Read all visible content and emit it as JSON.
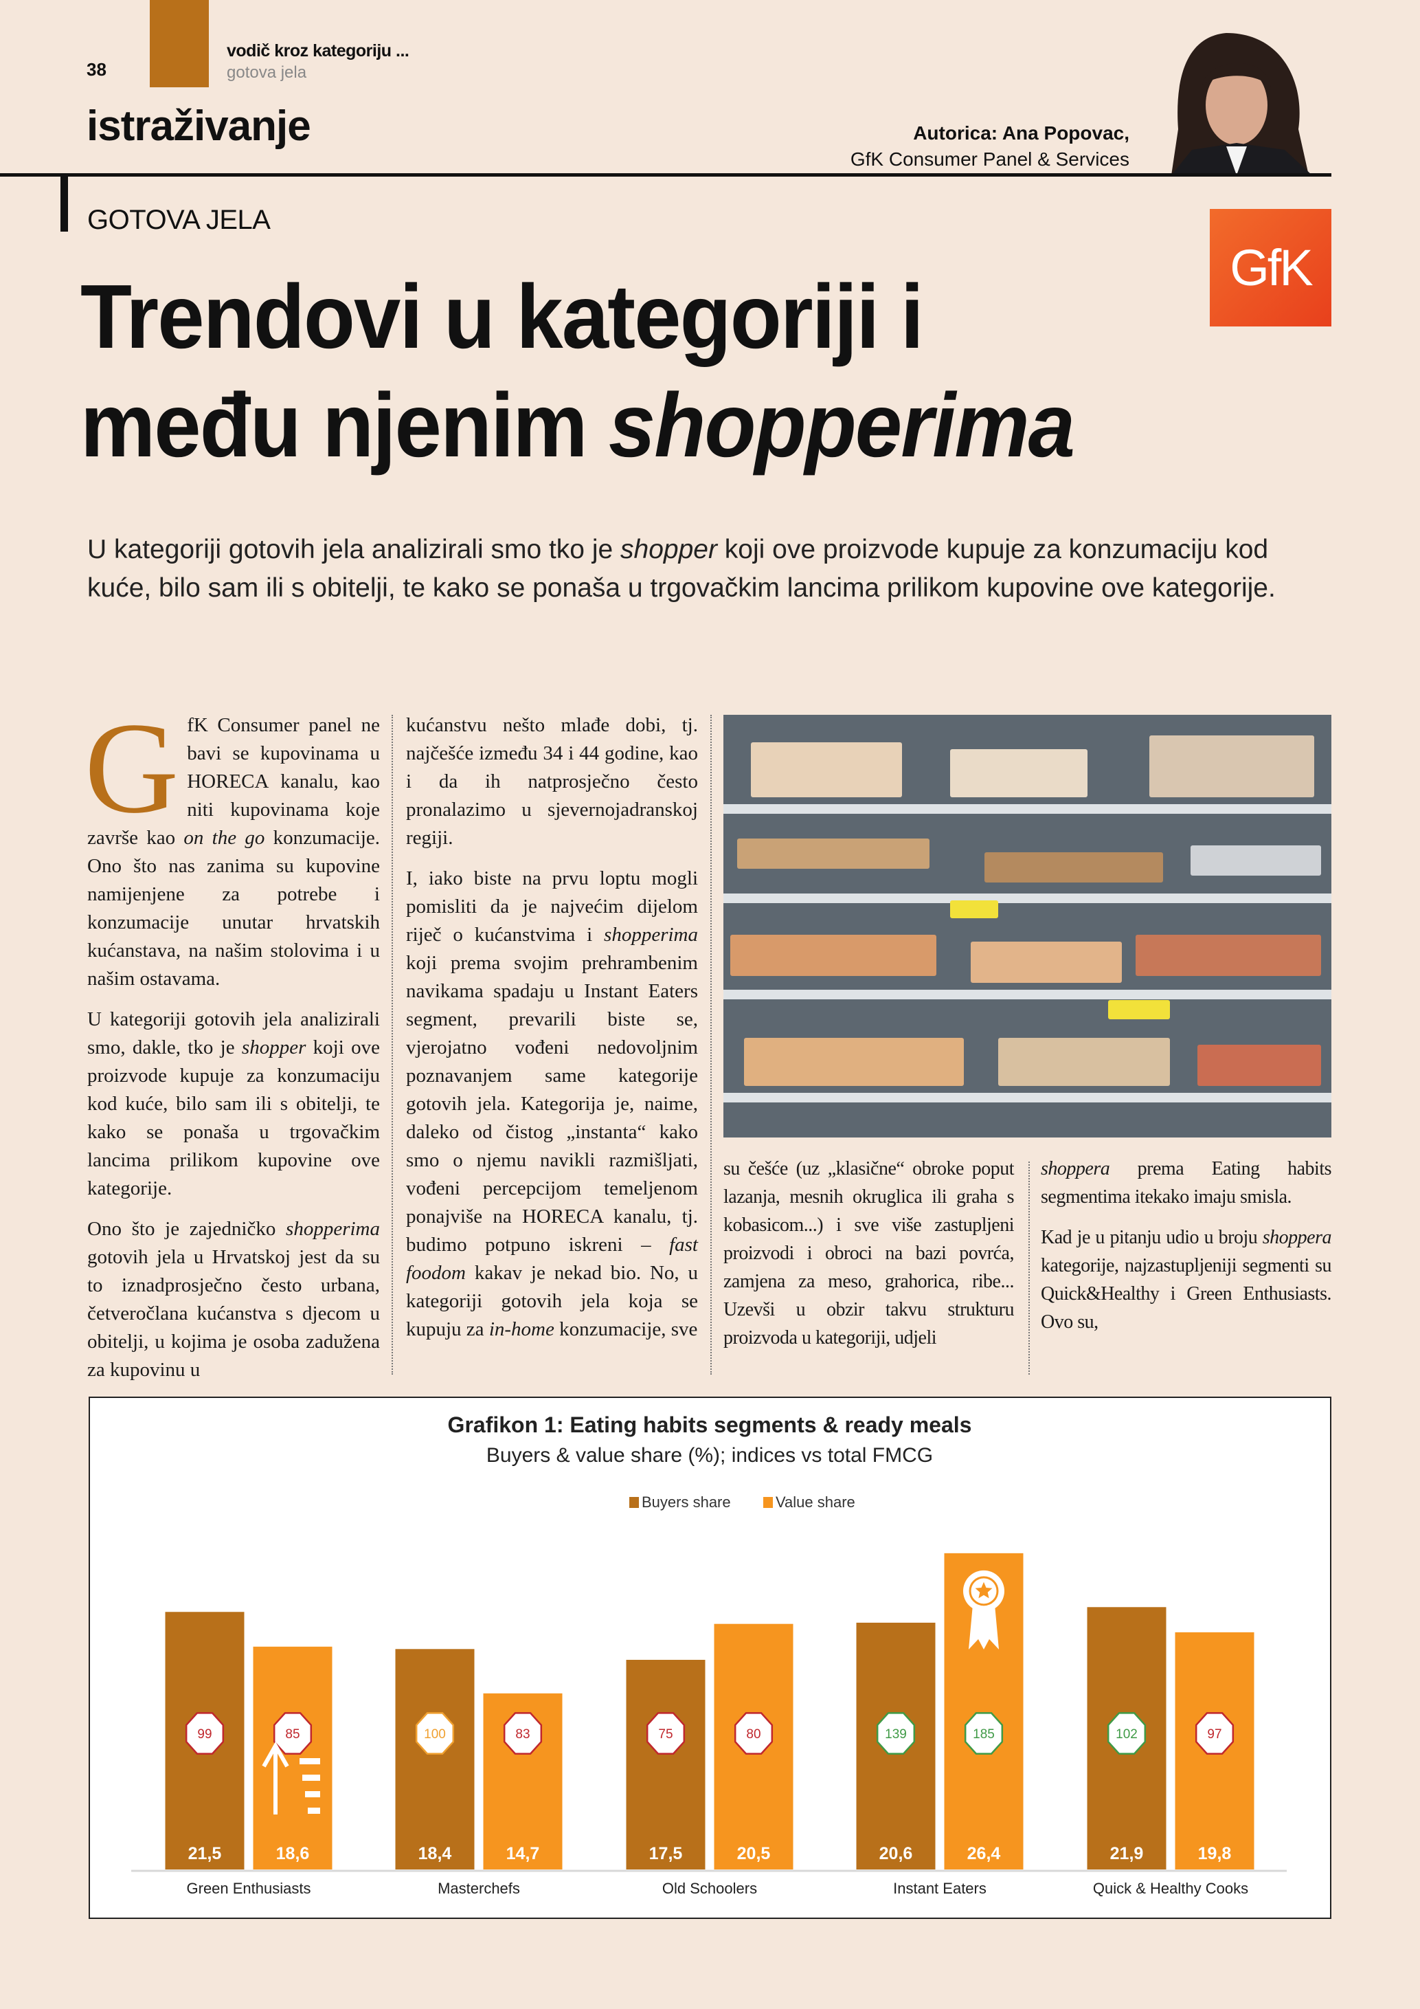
{
  "header": {
    "page_number": "38",
    "kicker": "vodič kroz kategoriju ...",
    "kicker_sub": "gotova jela",
    "section": "istraživanje",
    "author_line": "Autorica: Ana Popovac,",
    "author_org": "GfK Consumer Panel & Services"
  },
  "article": {
    "category": "GOTOVA JELA",
    "logo_text": "GfK",
    "title_line1": "Trendovi u kategoriji i",
    "title_line2_plain": "među njenim ",
    "title_line2_italic": "shopperima",
    "intro_before": "U kategoriji gotovih jela analizirali smo tko je ",
    "intro_italic": "shopper",
    "intro_after": " koji ove proizvode kupuje za konzumaciju kod kuće, bilo sam ili s obitelji, te kako se ponaša u trgovačkim lancima prilikom kupovine ove kategorije.",
    "col1": {
      "dropcap": "G",
      "p1_a": "fK Consumer panel ne bavi se kupovinama u HORECA kanalu, kao niti kupovinama koje završe kao ",
      "p1_i": "on the go",
      "p1_b": " konzumacije. Ono što nas zanima su kupovine namijenjene za potrebe i konzumacije unutar hrvatskih kućanstava, na našim stolovima i u našim ostavama.",
      "p2_a": "U kategoriji gotovih jela analizirali smo, dakle, tko je ",
      "p2_i": "shopper",
      "p2_b": " koji ove proizvode kupuje za konzumaciju kod kuće, bilo sam ili s obitelji, te kako se ponaša u trgovačkim lancima prilikom kupovine ove kategorije.",
      "p3_a": "Ono što je zajedničko ",
      "p3_i": "shopperima",
      "p3_b": " gotovih jela u Hrvatskoj jest da su to iznadprosječno često urbana, četveročlana kućanstva s djecom u obitelji, u kojima je osoba zadužena za kupovinu u"
    },
    "col2": {
      "p1": "kućanstvu nešto mlađe dobi, tj. najčešće između 34 i 44 godine, kao i da ih natprosječno često pronalazimo u sjevernojadranskoj regiji.",
      "p2_a": "I, iako biste na prvu loptu mogli pomisliti da je najvećim dijelom riječ o kućanstvima i ",
      "p2_i1": "shopperima",
      "p2_b": " koji prema svojim prehrambenim navikama spadaju u Instant Eaters segment, prevarili biste se, vjerojatno vođeni nedovoljnim poznavanjem same kategorije gotovih jela. Kategorija je, naime, daleko od čistog „instanta“ kako smo o njemu navikli razmišljati, vođeni percepcijom temeljenom ponajviše na HORECA kanalu, tj. budimo potpuno iskreni – ",
      "p2_i2": "fast foodom",
      "p2_c": " kakav je nekad bio. No, u kategoriji gotovih jela koja se kupuju za ",
      "p2_i3": "in-home",
      "p2_d": " konzumacije, sve"
    },
    "col3": {
      "p1": "su češće (uz „klasične“ obroke poput lazanja, mesnih okruglica ili graha s kobasicom...) i sve više zastupljeni proizvodi i obroci na bazi povrća, zamjena za meso, grahorica, ribe... Uzevši u obzir takvu strukturu proizvoda u kategoriji, udjeli"
    },
    "col4": {
      "p1_i": "shoppera",
      "p1_b": " prema Eating habits segmentima itekako imaju smisla.",
      "p2_a": "Kad je u pitanju udio u broju ",
      "p2_i": "shoppera",
      "p2_b": " kategorije, najzastupljeniji segmenti su Quick&Healthy i Green Enthusiasts. Ovo su,"
    }
  },
  "colors": {
    "background": "#f5e7db",
    "bronze": "#b8701a",
    "orange": "#f6951f",
    "index_red": "#c0272d",
    "index_green": "#3f9a46",
    "index_orange": "#f0a030"
  },
  "chart_data": {
    "type": "bar",
    "title": "Grafikon 1: Eating habits segments & ready meals",
    "subtitle": "Buyers & value share (%); indices vs total FMCG",
    "legend_placement": "top-center",
    "categories": [
      "Green Enthusiasts",
      "Masterchefs",
      "Old Schoolers",
      "Instant Eaters",
      "Quick & Healthy Cooks"
    ],
    "series": [
      {
        "name": "Buyers share",
        "color": "#b8701a",
        "values": [
          21.5,
          18.4,
          17.5,
          20.6,
          21.9
        ],
        "labels": [
          "21,5",
          "18,4",
          "17,5",
          "20,6",
          "21,9"
        ],
        "indices": [
          99,
          100,
          75,
          139,
          102
        ],
        "index_status": [
          "red",
          "orange",
          "red",
          "green",
          "green"
        ]
      },
      {
        "name": "Value share",
        "color": "#f6951f",
        "values": [
          18.6,
          14.7,
          20.5,
          26.4,
          19.8
        ],
        "labels": [
          "18,6",
          "14,7",
          "20,5",
          "26,4",
          "19,8"
        ],
        "indices": [
          85,
          83,
          80,
          185,
          97
        ],
        "index_status": [
          "red",
          "red",
          "red",
          "green",
          "red"
        ]
      }
    ],
    "ylim": [
      0,
      30
    ],
    "grid": false,
    "icons": {
      "Green Enthusiasts-Value share": "arrow-up-icon",
      "Instant Eaters-Value share": "award-ribbon-icon"
    }
  }
}
